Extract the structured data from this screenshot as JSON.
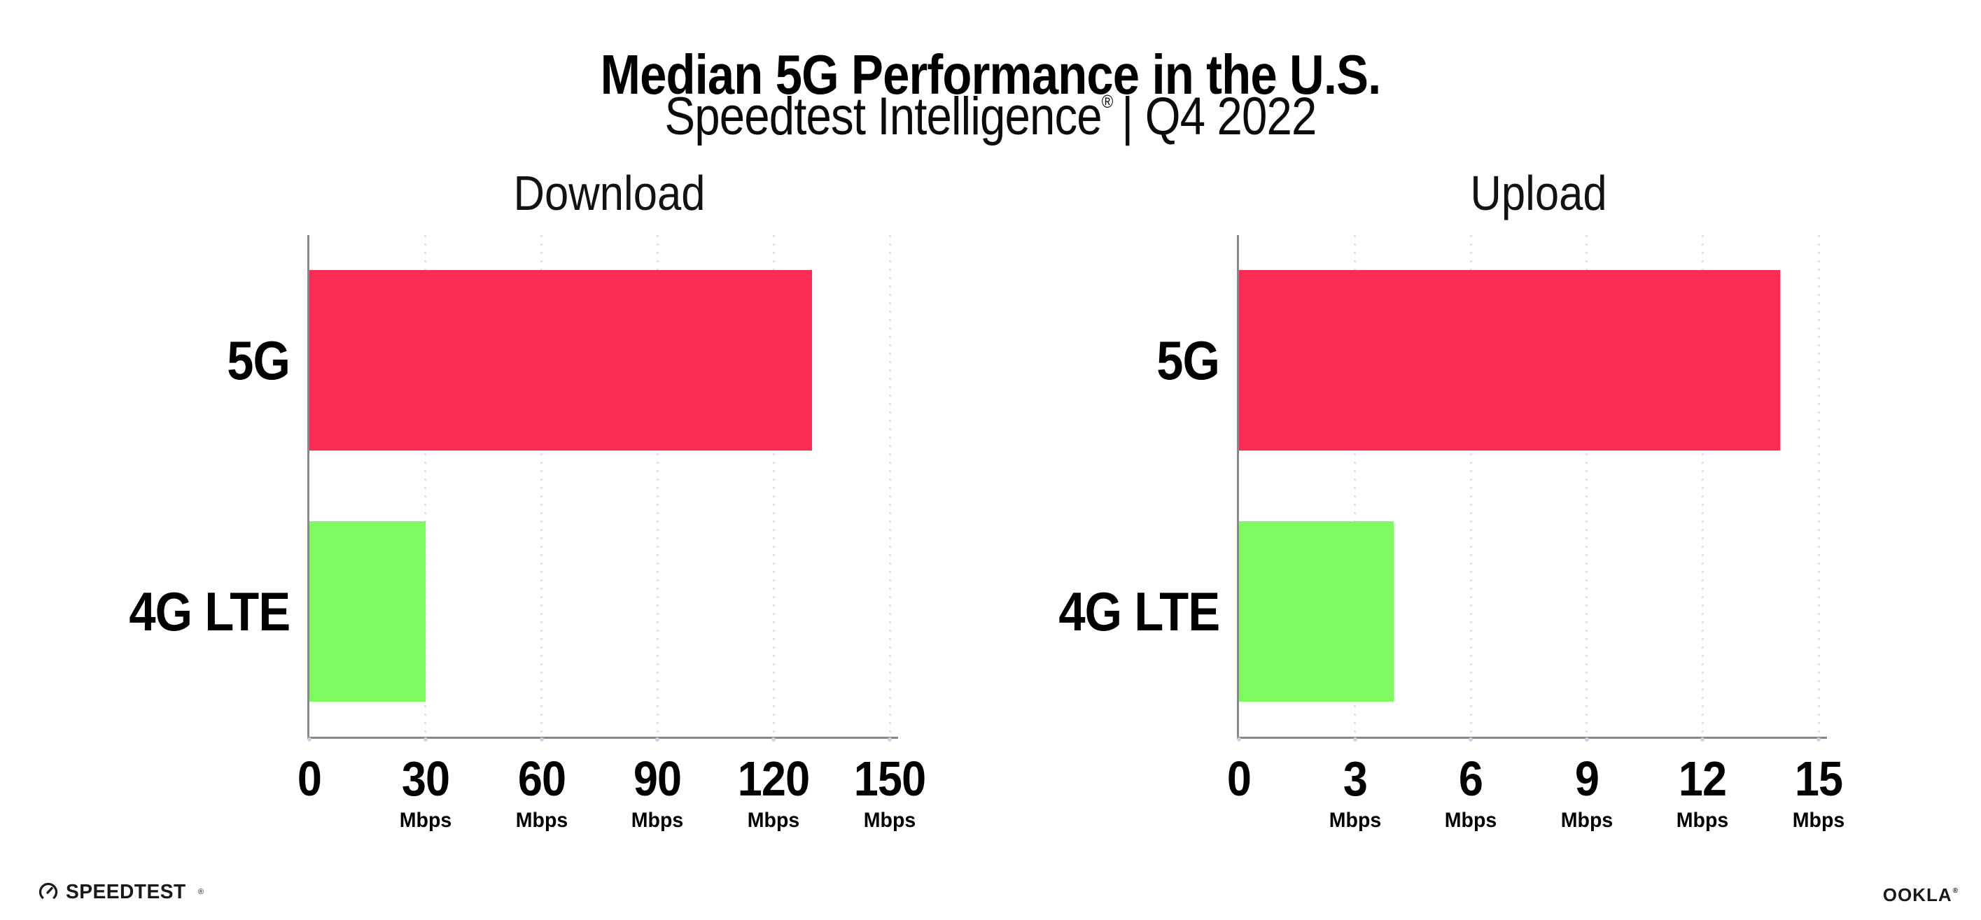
{
  "header": {
    "title": "Median 5G Performance in the U.S.",
    "subtitle_main": "Speedtest Intelligence",
    "subtitle_reg": "®",
    "subtitle_rest": "| Q4 2022"
  },
  "chart_data": [
    {
      "type": "bar",
      "orientation": "horizontal",
      "title": "Download",
      "categories": [
        "5G",
        "4G LTE"
      ],
      "values": [
        130,
        30
      ],
      "unit_label": "Mbps",
      "xlim": [
        0,
        150
      ],
      "xticks": [
        0,
        30,
        60,
        90,
        120,
        150
      ],
      "bar_colors": [
        "#fc2d55",
        "#80fa61"
      ],
      "grid": "dotted-vertical",
      "legend": "none"
    },
    {
      "type": "bar",
      "orientation": "horizontal",
      "title": "Upload",
      "categories": [
        "5G",
        "4G LTE"
      ],
      "values": [
        14,
        4
      ],
      "unit_label": "Mbps",
      "xlim": [
        0,
        15
      ],
      "xticks": [
        0,
        3,
        6,
        9,
        12,
        15
      ],
      "bar_colors": [
        "#fc2d55",
        "#80fa61"
      ],
      "grid": "dotted-vertical",
      "legend": "none"
    }
  ],
  "colors": {
    "bar_5g": "#fc2d55",
    "bar_4g_lte": "#80fa61",
    "axis": "#87878e",
    "grid_dot": "#dfe2ef",
    "tick_dot": "#ccd3ea",
    "text": "#000000"
  },
  "footer": {
    "speedtest_label": "SPEEDTEST",
    "speedtest_reg": "®",
    "speedtest_icon": "gauge-icon",
    "ookla_label": "OOKLA",
    "ookla_reg": "®"
  }
}
